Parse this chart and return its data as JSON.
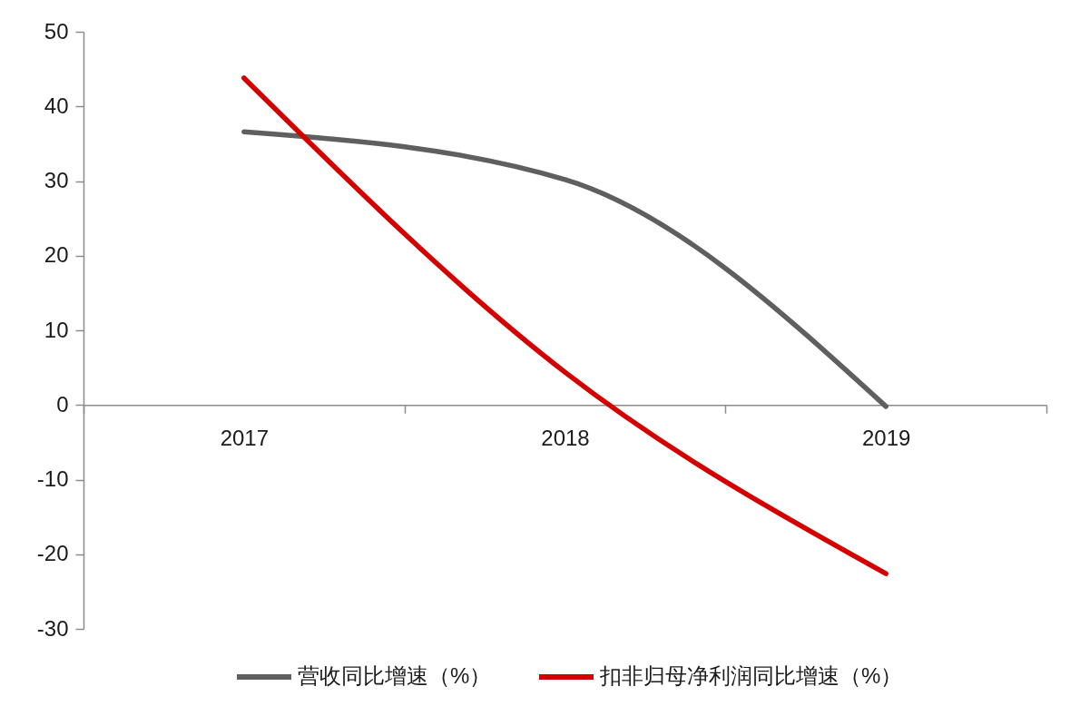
{
  "chart_data": {
    "type": "line",
    "categories": [
      "2017",
      "2018",
      "2019"
    ],
    "series": [
      {
        "name": "营收同比增速（%）",
        "color": "#5f5f5f",
        "values": [
          36.6,
          30.2,
          -0.2
        ]
      },
      {
        "name": "扣非归母净利润同比增速（%）",
        "color": "#d40000",
        "values": [
          43.8,
          4.4,
          -22.6
        ]
      }
    ],
    "ylim": [
      -30,
      50
    ],
    "yticks": [
      -30,
      -20,
      -10,
      0,
      10,
      20,
      30,
      40,
      50
    ],
    "grid": false,
    "legend": "bottom",
    "marker": "none",
    "line_style": "solid"
  }
}
